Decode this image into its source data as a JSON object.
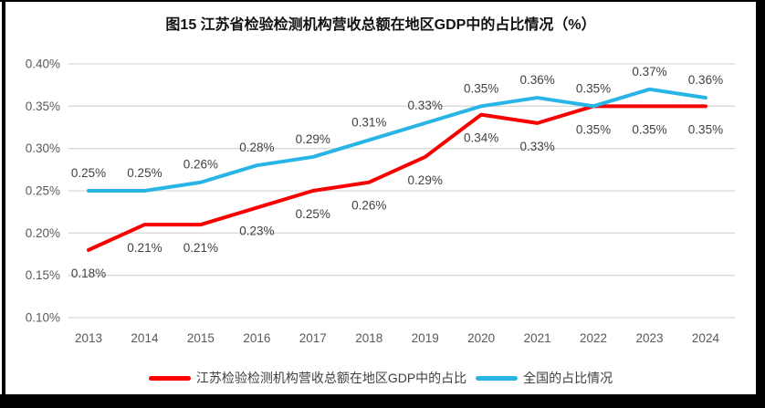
{
  "figure": {
    "title": "图15  江苏省检验检测机构营收总额在地区GDP中的占比情况（%）"
  },
  "chart_data": {
    "type": "line",
    "title": "图15  江苏省检验检测机构营收总额在地区GDP中的占比情况（%）",
    "categories": [
      "2013",
      "2014",
      "2015",
      "2016",
      "2017",
      "2018",
      "2019",
      "2020",
      "2021",
      "2022",
      "2023",
      "2024"
    ],
    "series": [
      {
        "id": "jiangsu",
        "name": "江苏检验检测机构营收总额在地区GDP中的占比",
        "color": "#f80000",
        "values": [
          0.18,
          0.21,
          0.21,
          0.23,
          0.25,
          0.26,
          0.29,
          0.34,
          0.33,
          0.35,
          0.35,
          0.35
        ],
        "labels": [
          "0.18%",
          "0.21%",
          "0.21%",
          "0.23%",
          "0.25%",
          "0.26%",
          "0.29%",
          "0.34%",
          "0.33%",
          "0.35%",
          "0.35%",
          "0.35%"
        ],
        "label_position": "below"
      },
      {
        "id": "national",
        "name": "全国的占比情况",
        "color": "#29b4e6",
        "values": [
          0.25,
          0.25,
          0.26,
          0.28,
          0.29,
          0.31,
          0.33,
          0.35,
          0.36,
          0.35,
          0.37,
          0.36
        ],
        "labels": [
          "0.25%",
          "0.25%",
          "0.26%",
          "0.28%",
          "0.29%",
          "0.31%",
          "0.33%",
          "0.35%",
          "0.36%",
          "0.35%",
          "0.37%",
          "0.36%"
        ],
        "label_position": "above"
      }
    ],
    "xlabel": "",
    "ylabel": "",
    "y_tick_labels": [
      "0.40%",
      "0.35%",
      "0.30%",
      "0.25%",
      "0.20%",
      "0.15%",
      "0.10%"
    ],
    "y_tick_values": [
      0.4,
      0.35,
      0.3,
      0.25,
      0.2,
      0.15,
      0.1
    ],
    "ylim": [
      0.1,
      0.4
    ],
    "grid": "horizontal",
    "legend_position": "bottom",
    "axis_text_color": "#595959",
    "data_label_color": "#404040",
    "grid_color": "#d9d9d9"
  }
}
